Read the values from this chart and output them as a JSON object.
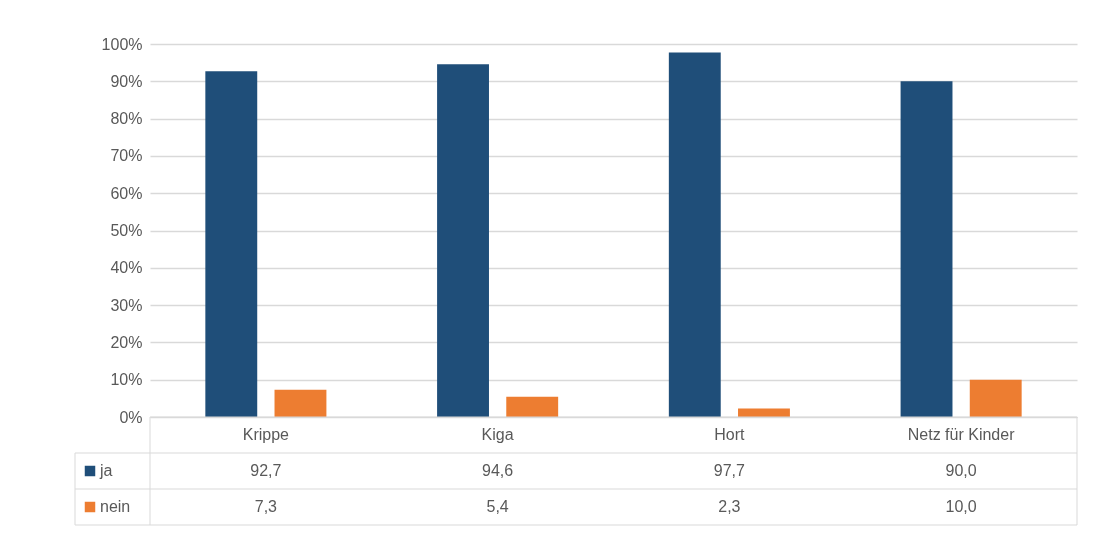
{
  "chart_data": {
    "type": "bar",
    "categories": [
      "Krippe",
      "Kiga",
      "Hort",
      "Netz für Kinder"
    ],
    "series": [
      {
        "name": "ja",
        "color": "#1f4e79",
        "values": [
          92.7,
          94.6,
          97.7,
          90.0
        ],
        "value_labels": [
          "92,7",
          "94,6",
          "97,7",
          "90,0"
        ]
      },
      {
        "name": "nein",
        "color": "#ed7d31",
        "values": [
          7.3,
          5.4,
          2.3,
          10.0
        ],
        "value_labels": [
          "7,3",
          "5,4",
          "2,3",
          "10,0"
        ]
      }
    ],
    "ylim": [
      0,
      100
    ],
    "yticks": [
      {
        "value": 0,
        "label": "0%"
      },
      {
        "value": 10,
        "label": "10%"
      },
      {
        "value": 20,
        "label": "20%"
      },
      {
        "value": 30,
        "label": "30%"
      },
      {
        "value": 40,
        "label": "40%"
      },
      {
        "value": 50,
        "label": "50%"
      },
      {
        "value": 60,
        "label": "60%"
      },
      {
        "value": 70,
        "label": "70%"
      },
      {
        "value": 80,
        "label": "80%"
      },
      {
        "value": 90,
        "label": "90%"
      },
      {
        "value": 100,
        "label": "100%"
      }
    ],
    "grid": "y",
    "legend": "bottom left"
  }
}
